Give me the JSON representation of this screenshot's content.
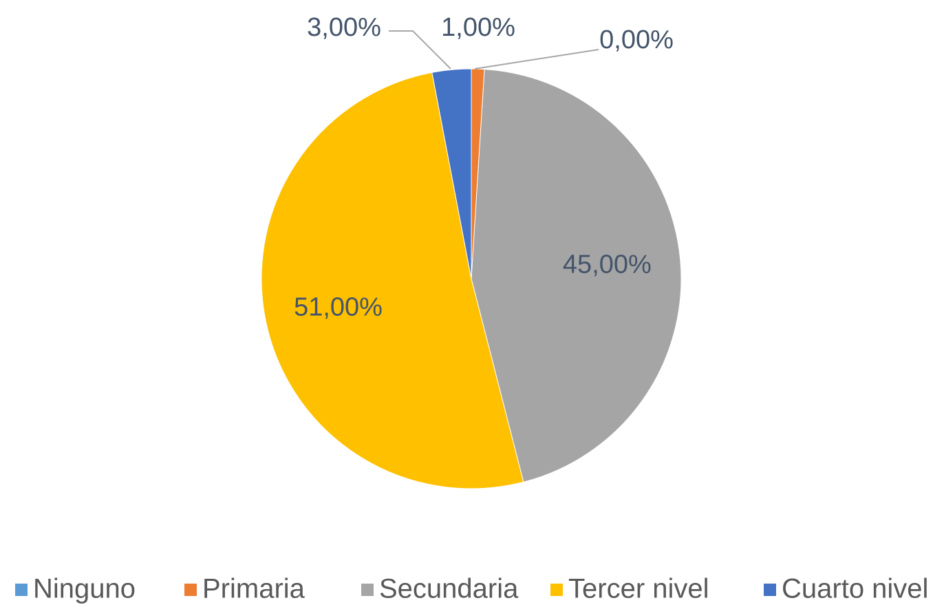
{
  "chart_data": {
    "type": "pie",
    "categories": [
      "Ninguno",
      "Primaria",
      "Secundaria",
      "Tercer nivel",
      "Cuarto nivel"
    ],
    "values": [
      0,
      1,
      45,
      51,
      3
    ],
    "value_labels": [
      "0,00%",
      "1,00%",
      "45,00%",
      "51,00%",
      "3,00%"
    ],
    "colors": [
      "#5b9bd5",
      "#ed7d31",
      "#a5a5a5",
      "#ffc000",
      "#4472c4"
    ],
    "legend": "bottom"
  }
}
